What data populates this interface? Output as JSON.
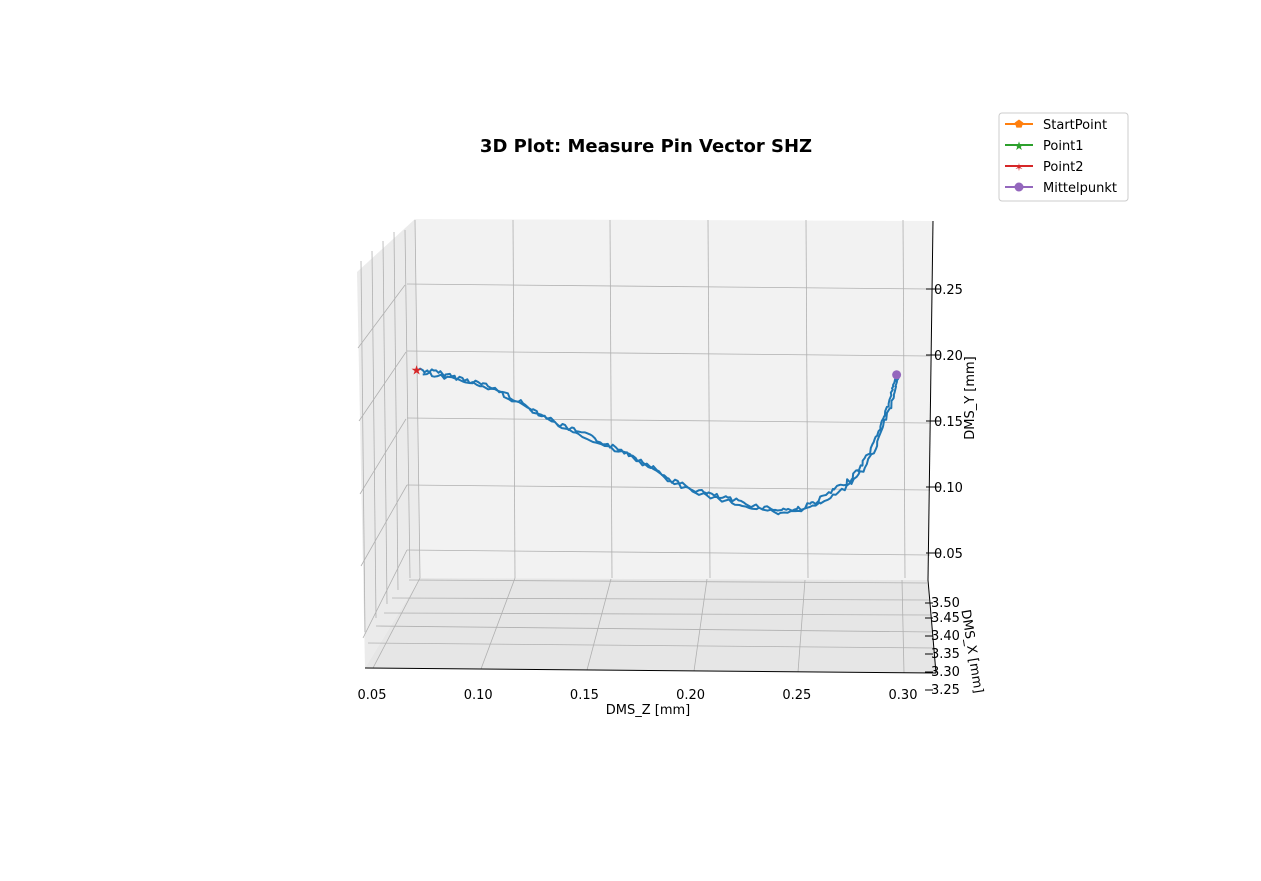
{
  "chart_data": {
    "type": "line",
    "projection": "3d",
    "title": "3D Plot: Measure Pin Vector SHZ",
    "xlabel": "DMS_Z [mm]",
    "ylabel": "DMS_Y [mm]",
    "zlabel": "DMS_X [mm]",
    "z_ticks": [
      "0.05",
      "0.10",
      "0.15",
      "0.20",
      "0.25",
      "0.30"
    ],
    "y_ticks": [
      "0.05",
      "0.10",
      "0.15",
      "0.20",
      "0.25"
    ],
    "x_ticks": [
      "3.25",
      "3.30",
      "3.35",
      "3.40",
      "3.45",
      "3.50"
    ],
    "xlim": [
      0.045,
      0.3
    ],
    "ylim": [
      0.025,
      0.295
    ],
    "grid": true,
    "legend_position": "top-right",
    "colors": {
      "trajectory": "#1f77b4",
      "StartPoint": "#ff7f0e",
      "Point1": "#2ca02c",
      "Point2": "#d62728",
      "Mittelpunkt": "#9467bd",
      "pane": "#f2f2f2",
      "grid": "#b0b0b0"
    },
    "legend": [
      {
        "label": "StartPoint",
        "marker": "pentagon",
        "color": "#ff7f0e"
      },
      {
        "label": "Point1",
        "marker": "star",
        "color": "#2ca02c"
      },
      {
        "label": "Point2",
        "marker": "star-thin",
        "color": "#d62728"
      },
      {
        "label": "Mittelpunkt",
        "marker": "circle",
        "color": "#9467bd"
      }
    ],
    "series": [
      {
        "name": "trajectory",
        "points": [
          [
            0.072,
            0.189
          ],
          [
            0.08,
            0.187
          ],
          [
            0.09,
            0.183
          ],
          [
            0.1,
            0.179
          ],
          [
            0.11,
            0.173
          ],
          [
            0.12,
            0.164
          ],
          [
            0.13,
            0.155
          ],
          [
            0.14,
            0.146
          ],
          [
            0.15,
            0.14
          ],
          [
            0.16,
            0.133
          ],
          [
            0.17,
            0.126
          ],
          [
            0.18,
            0.117
          ],
          [
            0.19,
            0.106
          ],
          [
            0.2,
            0.099
          ],
          [
            0.21,
            0.094
          ],
          [
            0.22,
            0.09
          ],
          [
            0.23,
            0.086
          ],
          [
            0.24,
            0.083
          ],
          [
            0.25,
            0.083
          ],
          [
            0.258,
            0.088
          ],
          [
            0.266,
            0.096
          ],
          [
            0.274,
            0.104
          ],
          [
            0.28,
            0.115
          ],
          [
            0.286,
            0.131
          ],
          [
            0.29,
            0.149
          ],
          [
            0.294,
            0.166
          ],
          [
            0.296,
            0.18
          ],
          [
            0.297,
            0.186
          ]
        ]
      }
    ],
    "markers": [
      {
        "name": "Point2",
        "point": [
          0.071,
          0.189
        ]
      },
      {
        "name": "Mittelpunkt",
        "point": [
          0.297,
          0.185
        ]
      }
    ]
  }
}
